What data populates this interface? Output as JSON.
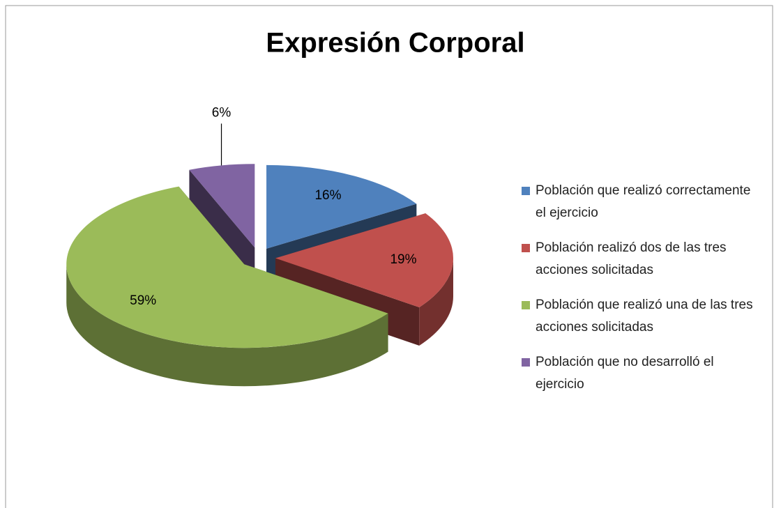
{
  "chart_data": {
    "type": "pie3d",
    "title": "Expresión Corporal",
    "categories": [
      "Población que realizó correctamente el ejercicio",
      "Población realizó dos de las tres acciones solicitadas",
      "Población que realizó una de las tres acciones solicitadas",
      "Población que no desarrolló el ejercicio"
    ],
    "values": [
      16,
      19,
      59,
      6
    ],
    "value_labels": [
      "16%",
      "19%",
      "59%",
      "6%"
    ],
    "colors": [
      "#4f81bd",
      "#c0504d",
      "#9bbb59",
      "#8064a2"
    ],
    "legend": "right"
  }
}
